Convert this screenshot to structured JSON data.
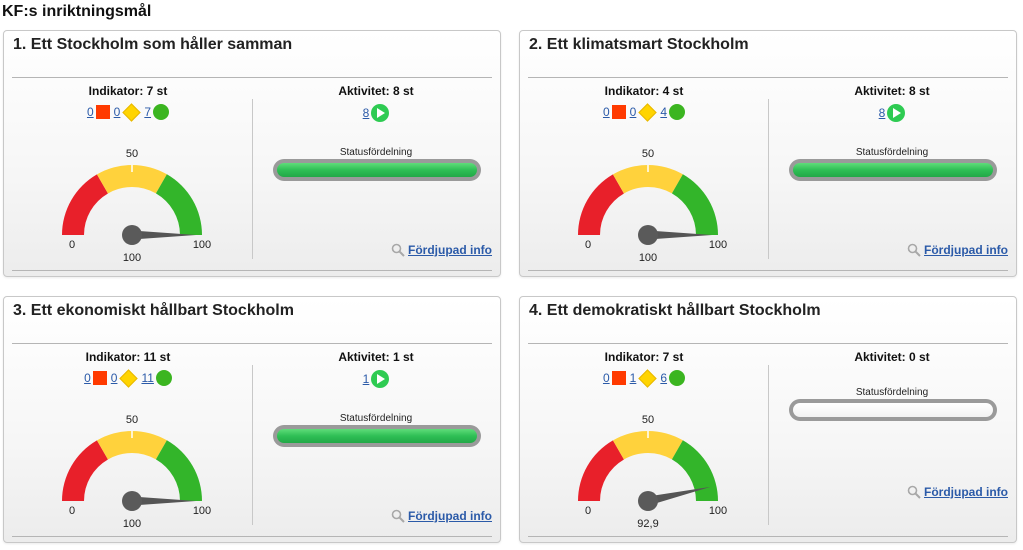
{
  "page_title": "KF:s inriktningsmål",
  "labels": {
    "status_distribution": "Statusfördelning",
    "more_info": "Fördjupad info"
  },
  "colors": {
    "red": "#ff3a00",
    "yellow": "#ffd400",
    "green": "#3bb520",
    "link": "#2b5aa8"
  },
  "cards": [
    {
      "title": "1. Ett Stockholm som håller samman",
      "indicator_heading": "Indikator: 7 st",
      "ind_red": "0",
      "ind_yellow": "0",
      "ind_green": "7",
      "activity_heading": "Aktivitet: 8 st",
      "activity_count": "8",
      "status_filled": true,
      "gauge": {
        "min_label": "0",
        "mid_label": "50",
        "max_label": "100",
        "value_label": "100",
        "value": 100
      }
    },
    {
      "title": "2. Ett klimatsmart Stockholm",
      "indicator_heading": "Indikator: 4 st",
      "ind_red": "0",
      "ind_yellow": "0",
      "ind_green": "4",
      "activity_heading": "Aktivitet: 8 st",
      "activity_count": "8",
      "status_filled": true,
      "gauge": {
        "min_label": "0",
        "mid_label": "50",
        "max_label": "100",
        "value_label": "100",
        "value": 100
      }
    },
    {
      "title": "3. Ett ekonomiskt hållbart Stockholm",
      "indicator_heading": "Indikator: 11 st",
      "ind_red": "0",
      "ind_yellow": "0",
      "ind_green": "11",
      "activity_heading": "Aktivitet: 1 st",
      "activity_count": "1",
      "status_filled": true,
      "gauge": {
        "min_label": "0",
        "mid_label": "50",
        "max_label": "100",
        "value_label": "100",
        "value": 100
      }
    },
    {
      "title": "4. Ett demokratiskt hållbart Stockholm",
      "indicator_heading": "Indikator: 7 st",
      "ind_red": "0",
      "ind_yellow": "1",
      "ind_green": "6",
      "activity_heading": "Aktivitet: 0 st",
      "activity_count": "",
      "status_filled": false,
      "gauge": {
        "min_label": "0",
        "mid_label": "50",
        "max_label": "100",
        "value_label": "92,9",
        "value": 92.9
      }
    }
  ]
}
